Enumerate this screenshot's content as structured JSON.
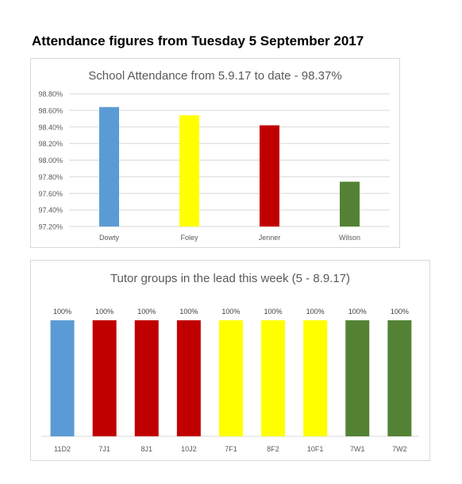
{
  "page": {
    "heading": "Attendance figures from Tuesday 5 September 2017"
  },
  "chart_data": [
    {
      "type": "bar",
      "title": "School Attendance from 5.9.17 to date - 98.37%",
      "xlabel": "",
      "ylabel": "",
      "categories": [
        "Dowty",
        "Foley",
        "Jenner",
        "Wilson"
      ],
      "values": [
        98.64,
        98.54,
        98.42,
        97.74
      ],
      "colors": [
        "#5b9bd5",
        "#ffff00",
        "#c00000",
        "#548235"
      ],
      "ylim": [
        97.2,
        98.8
      ],
      "yticks": [
        "97.20%",
        "97.40%",
        "97.60%",
        "97.80%",
        "98.00%",
        "98.20%",
        "98.40%",
        "98.60%",
        "98.80%"
      ],
      "grid": true,
      "legend": "none"
    },
    {
      "type": "bar",
      "title": "Tutor groups in the lead this week (5 - 8.9.17)",
      "xlabel": "",
      "ylabel": "",
      "categories": [
        "11D2",
        "7J1",
        "8J1",
        "10J2",
        "7F1",
        "8F2",
        "10F1",
        "7W1",
        "7W2"
      ],
      "values": [
        100,
        100,
        100,
        100,
        100,
        100,
        100,
        100,
        100
      ],
      "data_labels": [
        "100%",
        "100%",
        "100%",
        "100%",
        "100%",
        "100%",
        "100%",
        "100%",
        "100%"
      ],
      "colors": [
        "#5b9bd5",
        "#c00000",
        "#c00000",
        "#c00000",
        "#ffff00",
        "#ffff00",
        "#ffff00",
        "#548235",
        "#548235"
      ],
      "ylim": [
        0,
        100
      ],
      "grid": false,
      "legend": "none"
    }
  ]
}
